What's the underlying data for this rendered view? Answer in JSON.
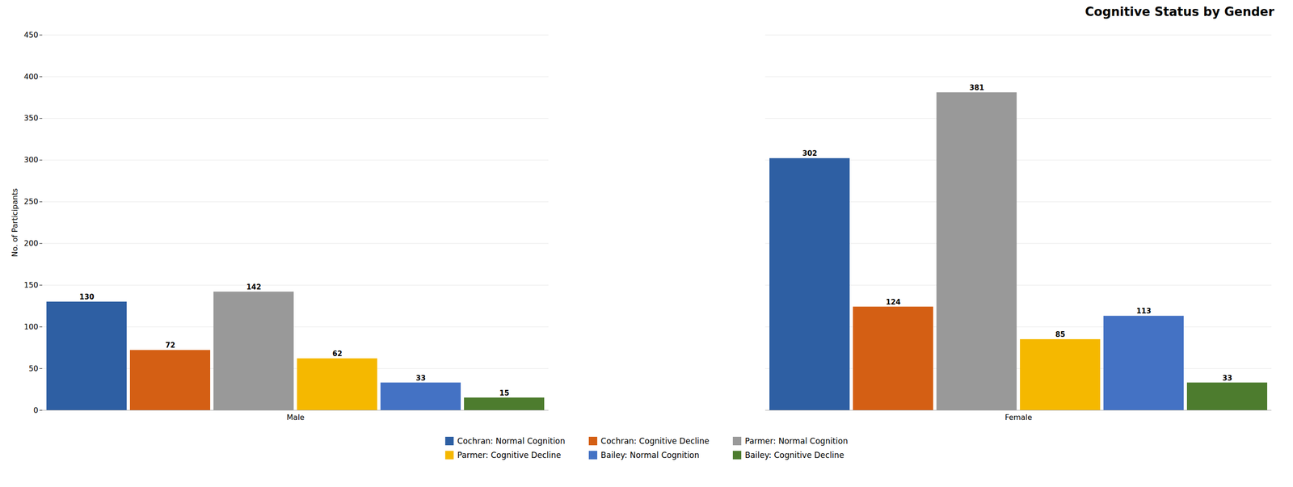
{
  "chart_data": {
    "type": "bar",
    "title": "Cognitive Status by Gender",
    "ylabel": "No. of Participants",
    "categories": [
      "Male",
      "Female"
    ],
    "series": [
      {
        "name": "Cochran: Normal Cognition",
        "color": "#2E5FA3",
        "values": [
          130,
          302
        ]
      },
      {
        "name": "Cochran: Cognitive Decline",
        "color": "#D45F14",
        "values": [
          72,
          124
        ]
      },
      {
        "name": "Parmer: Normal Cognition",
        "color": "#999999",
        "values": [
          142,
          381
        ]
      },
      {
        "name": "Parmer: Cognitive Decline",
        "color": "#F5B800",
        "values": [
          62,
          85
        ]
      },
      {
        "name": "Bailey: Normal Cognition",
        "color": "#4472C4",
        "values": [
          33,
          113
        ]
      },
      {
        "name": "Bailey: Cognitive Decline",
        "color": "#4D7C2E",
        "values": [
          15,
          33
        ]
      }
    ],
    "ylim": [
      0,
      450
    ],
    "yticks": [
      0,
      50,
      100,
      150,
      200,
      250,
      300,
      350,
      400,
      450
    ],
    "grid": true,
    "legend": "bottom",
    "data_labels": true
  }
}
